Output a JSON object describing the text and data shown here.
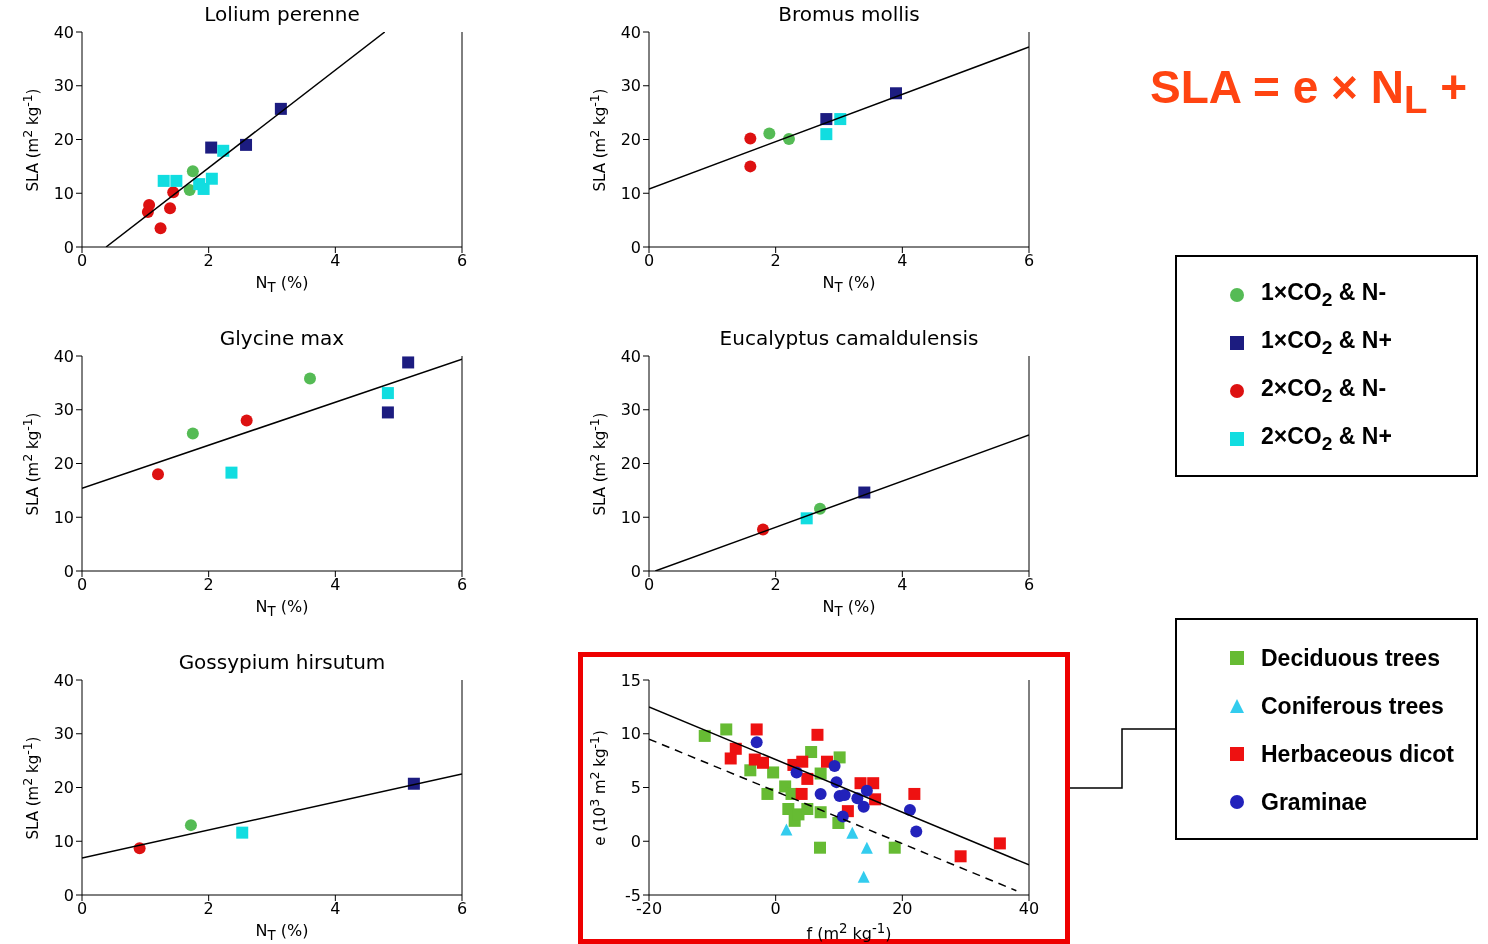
{
  "chart_data": [
    {
      "type": "scatter",
      "title": "Lolium perenne",
      "xlabel": "N$_{T}$ (%)",
      "ylabel": "SLA (m$^{2}$ kg$^{-1}$)",
      "xlim": [
        0,
        6
      ],
      "ylim": [
        0,
        40
      ],
      "xticks": [
        0,
        2,
        4,
        6
      ],
      "yticks": [
        0,
        10,
        20,
        30,
        40
      ],
      "series": [
        {
          "color": "#55bb55",
          "marker": "circle",
          "x": [
            1.75,
            1.7
          ],
          "values": [
            14.1,
            10.6
          ]
        },
        {
          "color": "#1c1c80",
          "marker": "square",
          "x": [
            2.04,
            2.59,
            3.14
          ],
          "values": [
            18.5,
            19.0,
            25.7
          ]
        },
        {
          "color": "#dd1111",
          "marker": "circle",
          "x": [
            1.06,
            1.04,
            1.39,
            1.44,
            1.24
          ],
          "values": [
            7.8,
            6.5,
            7.2,
            10.2,
            3.5
          ]
        },
        {
          "color": "#11dde0",
          "marker": "square",
          "x": [
            1.29,
            1.49,
            1.85,
            2.05,
            2.23,
            1.92
          ],
          "values": [
            12.3,
            12.3,
            11.7,
            12.7,
            17.9,
            10.8
          ]
        },
        {
          "type": "line",
          "color": "#000000",
          "marker": "none",
          "x": [
            0.38,
            4.78
          ],
          "values": [
            0,
            40
          ]
        }
      ]
    },
    {
      "type": "scatter",
      "title": "Bromus mollis",
      "xlabel": "N$_{T}$ (%)",
      "ylabel": "SLA (m$^{2}$ kg$^{-1}$)",
      "xlim": [
        0,
        6
      ],
      "ylim": [
        0,
        40
      ],
      "xticks": [
        0,
        2,
        4,
        6
      ],
      "yticks": [
        0,
        10,
        20,
        30,
        40
      ],
      "legend": "right",
      "annotations": [
        "SLA = e × N$_{L}$ +"
      ],
      "series": [
        {
          "name": "1×CO$_{2}$ & N-",
          "color": "#55bb55",
          "marker": "circle",
          "x": [
            1.9,
            2.21
          ],
          "values": [
            21.1,
            20.1
          ]
        },
        {
          "name": "1×CO$_{2}$ & N+",
          "color": "#1c1c80",
          "marker": "square",
          "x": [
            2.8,
            3.9
          ],
          "values": [
            23.8,
            28.6
          ]
        },
        {
          "name": "2×CO$_{2}$ & N-",
          "color": "#dd1111",
          "marker": "circle",
          "x": [
            1.6,
            1.6
          ],
          "values": [
            20.2,
            15.0
          ]
        },
        {
          "name": "2×CO$_{2}$ & N+",
          "color": "#11dde0",
          "marker": "square",
          "x": [
            2.8,
            3.02
          ],
          "values": [
            21.0,
            23.8
          ]
        },
        {
          "type": "line",
          "color": "#000000",
          "marker": "none",
          "x": [
            0,
            6
          ],
          "values": [
            10.8,
            37.2
          ]
        }
      ]
    },
    {
      "type": "scatter",
      "title": "Glycine max",
      "xlabel": "N$_{T}$ (%)",
      "ylabel": "SLA (m$^{2}$ kg$^{-1}$)",
      "xlim": [
        0,
        6
      ],
      "ylim": [
        0,
        40
      ],
      "xticks": [
        0,
        2,
        4,
        6
      ],
      "yticks": [
        0,
        10,
        20,
        30,
        40
      ],
      "series": [
        {
          "color": "#55bb55",
          "marker": "circle",
          "x": [
            1.75,
            3.6
          ],
          "values": [
            25.6,
            35.8
          ]
        },
        {
          "color": "#1c1c80",
          "marker": "square",
          "x": [
            5.15,
            4.83
          ],
          "values": [
            38.8,
            29.5
          ]
        },
        {
          "color": "#dd1111",
          "marker": "circle",
          "x": [
            1.2,
            2.6
          ],
          "values": [
            18.0,
            28.0
          ]
        },
        {
          "color": "#11dde0",
          "marker": "square",
          "x": [
            2.36,
            4.83
          ],
          "values": [
            18.3,
            33.1
          ]
        },
        {
          "type": "line",
          "color": "#000000",
          "marker": "none",
          "x": [
            0,
            6
          ],
          "values": [
            15.4,
            39.4
          ]
        }
      ]
    },
    {
      "type": "scatter",
      "title": "Eucalyptus camaldulensis",
      "xlabel": "N$_{T}$ (%)",
      "ylabel": "SLA (m$^{2}$ kg$^{-1}$)",
      "xlim": [
        0,
        6
      ],
      "ylim": [
        0,
        40
      ],
      "xticks": [
        0,
        2,
        4,
        6
      ],
      "yticks": [
        0,
        10,
        20,
        30,
        40
      ],
      "series": [
        {
          "color": "#55bb55",
          "marker": "circle",
          "x": [
            2.7
          ],
          "values": [
            11.6
          ]
        },
        {
          "color": "#1c1c80",
          "marker": "square",
          "x": [
            3.4
          ],
          "values": [
            14.6
          ]
        },
        {
          "color": "#dd1111",
          "marker": "circle",
          "x": [
            1.8
          ],
          "values": [
            7.7
          ]
        },
        {
          "color": "#11dde0",
          "marker": "square",
          "x": [
            2.49
          ],
          "values": [
            9.8
          ]
        },
        {
          "type": "line",
          "color": "#000000",
          "marker": "none",
          "x": [
            0.1,
            6
          ],
          "values": [
            0,
            25.3
          ]
        }
      ]
    },
    {
      "type": "scatter",
      "title": "Gossypium hirsutum",
      "xlabel": "N$_{T}$ (%)",
      "ylabel": "SLA (m$^{2}$ kg$^{-1}$)",
      "xlim": [
        0,
        6
      ],
      "ylim": [
        0,
        40
      ],
      "xticks": [
        0,
        2,
        4,
        6
      ],
      "yticks": [
        0,
        10,
        20,
        30,
        40
      ],
      "series": [
        {
          "color": "#55bb55",
          "marker": "circle",
          "x": [
            1.72
          ],
          "values": [
            13.0
          ]
        },
        {
          "color": "#1c1c80",
          "marker": "square",
          "x": [
            5.24
          ],
          "values": [
            20.7
          ]
        },
        {
          "color": "#dd1111",
          "marker": "circle",
          "x": [
            0.91
          ],
          "values": [
            8.7
          ]
        },
        {
          "color": "#11dde0",
          "marker": "square",
          "x": [
            2.53
          ],
          "values": [
            11.6
          ]
        },
        {
          "type": "line",
          "color": "#000000",
          "marker": "none",
          "x": [
            0,
            6
          ],
          "values": [
            6.9,
            22.5
          ]
        }
      ]
    },
    {
      "type": "scatter",
      "xlabel": "f (m$^{2}$ kg$^{-1}$)",
      "ylabel": "e (10$^{3}$ m$^{2}$ kg$^{-1}$)",
      "xlim": [
        -20,
        40
      ],
      "ylim": [
        -5,
        15
      ],
      "xticks": [
        -20,
        0,
        20,
        40
      ],
      "yticks": [
        -5,
        0,
        5,
        10,
        15
      ],
      "legend": "right",
      "series": [
        {
          "name": "Deciduous trees",
          "color": "#66bb33",
          "marker": "square",
          "x": [
            -11.2,
            -7.8,
            -4,
            -0.4,
            -1.3,
            1.5,
            2,
            3,
            3.6,
            5,
            5.6,
            7.1,
            7.1,
            10.1,
            9.9,
            7,
            18.8,
            2.5
          ],
          "values": [
            9.8,
            10.4,
            6.6,
            6.4,
            4.4,
            5.1,
            3.0,
            1.9,
            2.5,
            3.0,
            8.3,
            6.3,
            2.7,
            7.8,
            1.7,
            -0.6,
            -0.6,
            4.4
          ]
        },
        {
          "name": "Coniferous trees",
          "color": "#33ccee",
          "marker": "triangle",
          "x": [
            1.7,
            12.1,
            14.4,
            13.9
          ],
          "values": [
            1.1,
            0.8,
            -0.6,
            -3.3
          ]
        },
        {
          "name": "Herbaceous dicot",
          "color": "#ee1111",
          "marker": "square",
          "x": [
            -3,
            -6.3,
            -7.1,
            -3.3,
            -2,
            2.8,
            4.2,
            5,
            6.6,
            8.1,
            13.4,
            15.4,
            15.7,
            11.4,
            21.9,
            29.2,
            35.4,
            4.1
          ],
          "values": [
            10.4,
            8.6,
            7.7,
            7.6,
            7.3,
            7.1,
            7.4,
            5.8,
            9.9,
            7.4,
            5.4,
            5.4,
            3.9,
            2.8,
            4.4,
            -1.4,
            -0.2,
            4.4
          ]
        },
        {
          "name": "Graminae",
          "color": "#2222bb",
          "marker": "circle",
          "x": [
            -3,
            3.3,
            9.3,
            7.1,
            9.6,
            10.1,
            10.9,
            10.6,
            13.9,
            12.9,
            14.4,
            21.2,
            22.2
          ],
          "values": [
            9.2,
            6.4,
            7.0,
            4.4,
            5.5,
            4.2,
            4.3,
            2.3,
            3.2,
            4.0,
            4.7,
            2.9,
            0.9
          ]
        },
        {
          "type": "line",
          "color": "#000000",
          "marker": "none",
          "x": [
            -20,
            40
          ],
          "values": [
            12.5,
            -2.2
          ]
        },
        {
          "type": "line",
          "color": "#000000",
          "marker": "none",
          "line_style": "dashed",
          "x": [
            -20,
            38
          ],
          "values": [
            9.5,
            -4.6
          ]
        }
      ]
    }
  ]
}
